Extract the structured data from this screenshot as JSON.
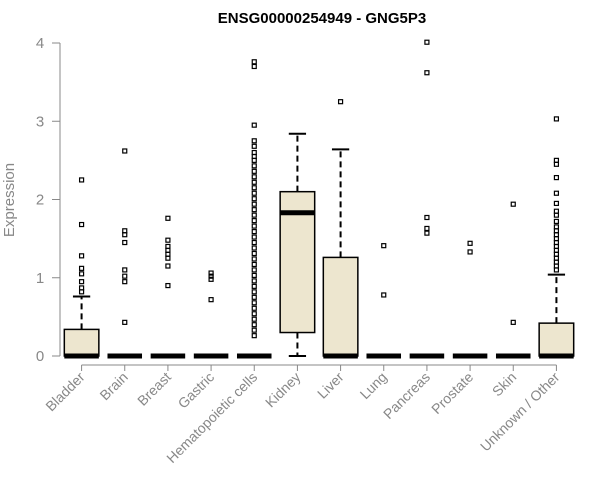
{
  "chart_data": {
    "type": "boxplot",
    "title": "ENSG00000254949 - GNG5P3",
    "ylabel": "Expression",
    "ylim": [
      0,
      4
    ],
    "yticks": [
      "0",
      "1",
      "2",
      "3",
      "4"
    ],
    "grid": false,
    "box_fill": "#ede6cf",
    "categories": [
      "Bladder",
      "Brain",
      "Breast",
      "Gastric",
      "Hematopoietic cells",
      "Kidney",
      "Liver",
      "Lung",
      "Pancreas",
      "Prostate",
      "Skin",
      "Unknown / Other"
    ],
    "boxes": [
      {
        "q1": 0,
        "median": 0,
        "q3": 0.34,
        "whisker_low": 0,
        "whisker_high": 0.76,
        "outliers": [
          0.82,
          0.87,
          0.95,
          1.05,
          1.12,
          1.28,
          1.68,
          2.25
        ]
      },
      {
        "q1": 0,
        "median": 0,
        "q3": 0,
        "whisker_low": 0,
        "whisker_high": 0,
        "outliers": [
          0.43,
          0.95,
          1.02,
          1.1,
          1.45,
          1.55,
          1.6,
          2.62
        ]
      },
      {
        "q1": 0,
        "median": 0,
        "q3": 0,
        "whisker_low": 0,
        "whisker_high": 0,
        "outliers": [
          0.9,
          1.15,
          1.25,
          1.3,
          1.35,
          1.4,
          1.48,
          1.76
        ]
      },
      {
        "q1": 0,
        "median": 0,
        "q3": 0,
        "whisker_low": 0,
        "whisker_high": 0,
        "outliers": [
          0.72,
          0.98,
          1.02,
          1.06
        ]
      },
      {
        "q1": 0,
        "median": 0,
        "q3": 0,
        "whisker_low": 0,
        "whisker_high": 0,
        "outliers": [
          0.26,
          0.33,
          0.4,
          0.47,
          0.54,
          0.61,
          0.68,
          0.75,
          0.82,
          0.89,
          0.96,
          1.03,
          1.1,
          1.17,
          1.24,
          1.31,
          1.38,
          1.45,
          1.52,
          1.59,
          1.66,
          1.73,
          1.8,
          1.87,
          1.94,
          2.01,
          2.08,
          2.15,
          2.22,
          2.29,
          2.36,
          2.43,
          2.5,
          2.55,
          2.6,
          2.68,
          2.75,
          2.95,
          3.7,
          3.76
        ]
      },
      {
        "q1": 0.3,
        "median": 1.83,
        "q3": 2.1,
        "whisker_low": 0,
        "whisker_high": 2.84,
        "outliers": []
      },
      {
        "q1": 0,
        "median": 0,
        "q3": 1.26,
        "whisker_low": 0,
        "whisker_high": 2.64,
        "outliers": [
          3.25
        ]
      },
      {
        "q1": 0,
        "median": 0,
        "q3": 0,
        "whisker_low": 0,
        "whisker_high": 0,
        "outliers": [
          0.78,
          1.41
        ]
      },
      {
        "q1": 0,
        "median": 0,
        "q3": 0,
        "whisker_low": 0,
        "whisker_high": 0,
        "outliers": [
          1.57,
          1.63,
          1.77,
          3.62,
          4.01
        ]
      },
      {
        "q1": 0,
        "median": 0,
        "q3": 0,
        "whisker_low": 0,
        "whisker_high": 0,
        "outliers": [
          1.33,
          1.44
        ]
      },
      {
        "q1": 0,
        "median": 0,
        "q3": 0,
        "whisker_low": 0,
        "whisker_high": 0,
        "outliers": [
          0.43,
          1.94
        ]
      },
      {
        "q1": 0,
        "median": 0,
        "q3": 0.42,
        "whisker_low": 0,
        "whisker_high": 1.04,
        "outliers": [
          1.1,
          1.15,
          1.2,
          1.25,
          1.3,
          1.35,
          1.4,
          1.45,
          1.5,
          1.55,
          1.6,
          1.65,
          1.72,
          1.8,
          1.85,
          1.95,
          2.08,
          2.28,
          2.45,
          2.5,
          3.03
        ]
      }
    ]
  }
}
